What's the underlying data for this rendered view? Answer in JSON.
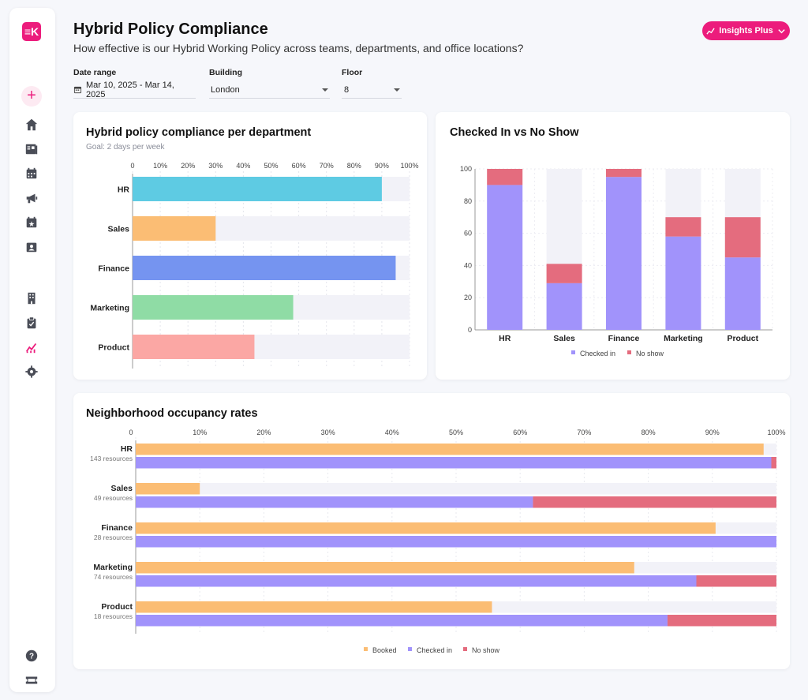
{
  "sidebar": {
    "logo_text": "≡K",
    "add_label": "+",
    "items": [
      {
        "name": "home-icon"
      },
      {
        "name": "reports-icon"
      },
      {
        "name": "calendar-icon"
      },
      {
        "name": "announcements-icon"
      },
      {
        "name": "events-icon"
      },
      {
        "name": "visitors-icon"
      },
      {
        "name": "office-icon"
      },
      {
        "name": "tasks-icon"
      },
      {
        "name": "insights-icon"
      },
      {
        "name": "settings-icon"
      }
    ],
    "bottom_items": [
      {
        "name": "help-icon"
      },
      {
        "name": "ticket-icon"
      }
    ]
  },
  "header": {
    "title": "Hybrid Policy Compliance",
    "subtitle": "How effective is our Hybrid Working Policy across teams, departments, and office locations?",
    "insights_button": "Insights Plus"
  },
  "filters": {
    "date_range": {
      "label": "Date range",
      "value": "Mar 10, 2025 - Mar 14, 2025"
    },
    "building": {
      "label": "Building",
      "value": "London"
    },
    "floor": {
      "label": "Floor",
      "value": "8"
    }
  },
  "colors": {
    "accent": "#ec1c7c",
    "booked": "#fbbd74",
    "checked_in": "#a193fb",
    "no_show": "#e46c7e",
    "track": "#f2f2f8"
  },
  "chart_data": [
    {
      "type": "bar",
      "orientation": "horizontal",
      "title": "Hybrid policy compliance per department",
      "subtitle": "Goal: 2 days per week",
      "categories": [
        "HR",
        "Sales",
        "Finance",
        "Marketing",
        "Product"
      ],
      "values": [
        90,
        30,
        95,
        58,
        44
      ],
      "colors": [
        "#5ecbe3",
        "#fbbd74",
        "#7594f0",
        "#8fdca5",
        "#fba7a4"
      ],
      "xlim": [
        0,
        100
      ],
      "ticks": [
        "0",
        "10%",
        "20%",
        "30%",
        "40%",
        "50%",
        "60%",
        "70%",
        "80%",
        "90%",
        "100%"
      ]
    },
    {
      "type": "bar",
      "stacked": true,
      "title": "Checked In vs No Show",
      "categories": [
        "HR",
        "Sales",
        "Finance",
        "Marketing",
        "Product"
      ],
      "series": [
        {
          "name": "Checked in",
          "color": "#a193fb",
          "values": [
            90,
            29,
            95,
            58,
            45
          ]
        },
        {
          "name": "No show",
          "color": "#e46c7e",
          "values": [
            10,
            12,
            5,
            12,
            25
          ]
        }
      ],
      "ylim": [
        0,
        100
      ],
      "yticks": [
        "0",
        "20",
        "40",
        "60",
        "80",
        "100"
      ]
    },
    {
      "type": "bar",
      "orientation": "horizontal",
      "title": "Neighborhood occupancy rates",
      "categories": [
        "HR",
        "Sales",
        "Finance",
        "Marketing",
        "Product"
      ],
      "sublabels": [
        "143 resources",
        "49 resources",
        "28 resources",
        "74 resources",
        "18 resources"
      ],
      "booked": [
        98,
        10,
        90.5,
        77.8,
        55.6
      ],
      "checked_in": [
        99.2,
        62,
        100,
        87.5,
        83
      ],
      "no_show": [
        0.8,
        38,
        0,
        12.5,
        17
      ],
      "xlim": [
        0,
        100
      ],
      "ticks": [
        "0",
        "10%",
        "20%",
        "30%",
        "40%",
        "50%",
        "60%",
        "70%",
        "80%",
        "90%",
        "100%"
      ],
      "legend": [
        "Booked",
        "Checked in",
        "No show"
      ]
    }
  ]
}
